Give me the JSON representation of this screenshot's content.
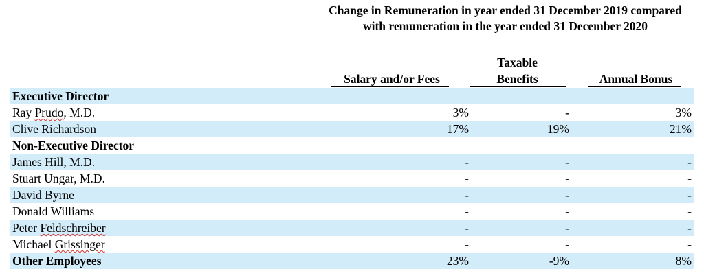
{
  "table": {
    "group_header": "Change in Remuneration in year ended 31 December 2019 compared with remuneration in the year ended 31 December 2020",
    "columns": {
      "salary": "Salary and/or Fees",
      "benefits_line1": "Taxable",
      "benefits_line2": "Benefits",
      "bonus": "Annual Bonus"
    },
    "rows": [
      {
        "name": "Executive Director",
        "salary": "",
        "benefits": "",
        "bonus": ""
      },
      {
        "name_plain": "Ray ",
        "name_marked": "Prudo",
        "name_suffix": ", M.D.",
        "salary": "3%",
        "benefits": "-",
        "bonus": "3%"
      },
      {
        "name": "Clive Richardson",
        "salary": "17%",
        "benefits": "19%",
        "bonus": "21%"
      },
      {
        "name": "Non-Executive Director",
        "salary": "",
        "benefits": "",
        "bonus": ""
      },
      {
        "name": "James Hill, M.D.",
        "salary": "-",
        "benefits": "-",
        "bonus": "-"
      },
      {
        "name": "Stuart Ungar, M.D.",
        "salary": "-",
        "benefits": "-",
        "bonus": "-"
      },
      {
        "name": "David Byrne",
        "salary": "-",
        "benefits": "-",
        "bonus": "-"
      },
      {
        "name": "Donald Williams",
        "salary": "-",
        "benefits": "-",
        "bonus": "-"
      },
      {
        "name_plain": "Peter ",
        "name_marked": "Feldschreiber",
        "salary": "-",
        "benefits": "-",
        "bonus": "-"
      },
      {
        "name_plain": "Michael ",
        "name_marked": "Grissinger",
        "salary": "-",
        "benefits": "-",
        "bonus": "-"
      },
      {
        "name": "Other Employees",
        "salary": "23%",
        "benefits": "-9%",
        "bonus": "8%"
      }
    ]
  }
}
